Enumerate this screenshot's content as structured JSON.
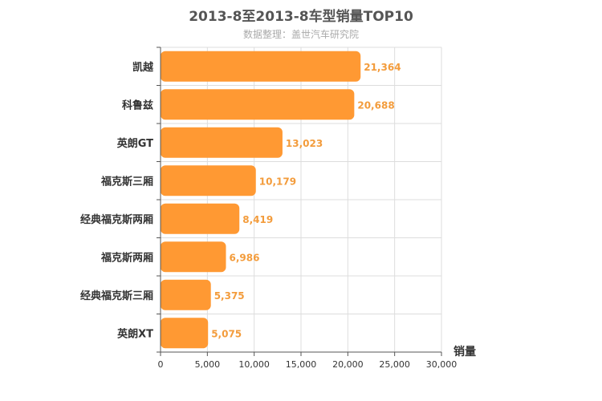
{
  "chart_data": {
    "type": "bar",
    "orientation": "horizontal",
    "title": "2013-8至2013-8车型销量TOP10",
    "subtitle": "数据整理：盖世汽车研究院",
    "categories": [
      "凯越",
      "科鲁兹",
      "英朗GT",
      "福克斯三厢",
      "经典福克斯两厢",
      "福克斯两厢",
      "经典福克斯三厢",
      "英朗XT"
    ],
    "values": [
      21364,
      20688,
      13023,
      10179,
      8419,
      6986,
      5375,
      5075
    ],
    "value_labels": [
      "21,364",
      "20,688",
      "13,023",
      "10,179",
      "8,419",
      "6,986",
      "5,375",
      "5,075"
    ],
    "xlabel": "销量",
    "ylabel": "",
    "xlim": [
      0,
      30000
    ],
    "xticks": [
      0,
      5000,
      10000,
      15000,
      20000,
      25000,
      30000
    ],
    "xtick_labels": [
      "0",
      "5,000",
      "10,000",
      "15,000",
      "20,000",
      "25,000",
      "30,000"
    ],
    "grid": true,
    "bar_color": "#ff9933",
    "label_color": "#f39c3c"
  }
}
